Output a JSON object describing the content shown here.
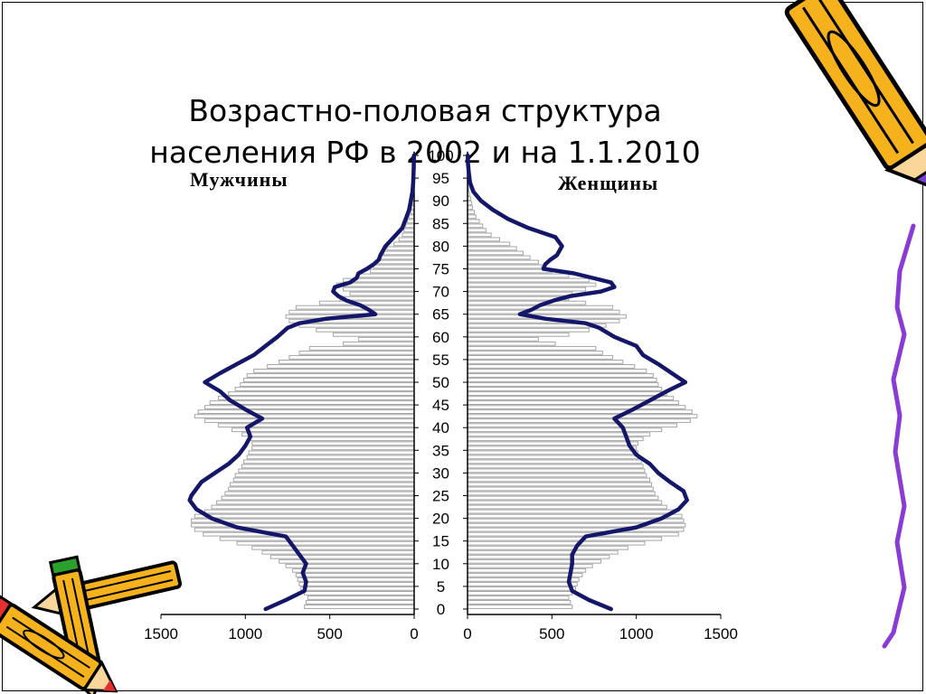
{
  "title_line1": "Возрастно-половая структура",
  "title_line2": "населения РФ в 2002 и на 1.1.2010",
  "chart_data": {
    "type": "population-pyramid",
    "title": "Возрастно-половая структура населения РФ в 2002 и на 1.1.2010",
    "left_label": "Мужчины",
    "right_label": "Женщины",
    "age_ticks": [
      0,
      5,
      10,
      15,
      20,
      25,
      30,
      35,
      40,
      45,
      50,
      55,
      60,
      65,
      70,
      75,
      80,
      85,
      90,
      95,
      100
    ],
    "x_ticks_left": [
      "1500",
      "1000",
      "500",
      "0"
    ],
    "x_ticks_right": [
      "0",
      "500",
      "1000",
      "1500"
    ],
    "xlim": [
      0,
      1500
    ],
    "ylim": [
      0,
      100
    ],
    "colors": {
      "bars_2002": "#ffffff",
      "bar_stroke": "#a6a6a6",
      "line_2010": "#14166a",
      "axis": "#000000"
    },
    "series": [
      {
        "name": "2002",
        "style": "bars",
        "ages": [
          0,
          1,
          2,
          3,
          4,
          5,
          6,
          7,
          8,
          9,
          10,
          11,
          12,
          13,
          14,
          15,
          16,
          17,
          18,
          19,
          20,
          21,
          22,
          23,
          24,
          25,
          26,
          27,
          28,
          29,
          30,
          31,
          32,
          33,
          34,
          35,
          36,
          37,
          38,
          39,
          40,
          41,
          42,
          43,
          44,
          45,
          46,
          47,
          48,
          49,
          50,
          51,
          52,
          53,
          54,
          55,
          56,
          57,
          58,
          59,
          60,
          61,
          62,
          63,
          64,
          65,
          66,
          67,
          68,
          69,
          70,
          71,
          72,
          73,
          74,
          75,
          76,
          77,
          78,
          79,
          80,
          81,
          82,
          83,
          84,
          85,
          86,
          87,
          88,
          89,
          90,
          91,
          92,
          93,
          94,
          95,
          96,
          97,
          98,
          99,
          100
        ],
        "male": [
          650,
          640,
          630,
          650,
          670,
          680,
          690,
          700,
          720,
          760,
          800,
          850,
          900,
          960,
          1050,
          1150,
          1250,
          1300,
          1320,
          1320,
          1300,
          1240,
          1200,
          1170,
          1140,
          1120,
          1100,
          1090,
          1070,
          1060,
          1040,
          1020,
          1010,
          990,
          980,
          960,
          960,
          980,
          1020,
          1080,
          1160,
          1240,
          1300,
          1280,
          1240,
          1210,
          1160,
          1100,
          1060,
          1030,
          1010,
          990,
          950,
          870,
          800,
          740,
          680,
          620,
          420,
          330,
          480,
          580,
          680,
          740,
          760,
          740,
          700,
          560,
          440,
          380,
          420,
          460,
          420,
          330,
          260,
          240,
          230,
          200,
          180,
          160,
          120,
          90,
          70,
          60,
          50,
          40,
          30,
          20,
          15,
          10,
          8,
          6,
          5,
          4,
          3,
          2,
          2,
          1,
          1,
          1,
          1
        ],
        "female": [
          620,
          610,
          600,
          620,
          640,
          650,
          660,
          680,
          700,
          740,
          790,
          840,
          890,
          950,
          1050,
          1150,
          1250,
          1280,
          1290,
          1280,
          1270,
          1220,
          1180,
          1150,
          1130,
          1110,
          1100,
          1090,
          1080,
          1060,
          1050,
          1040,
          1030,
          1020,
          1010,
          1000,
          1010,
          1040,
          1080,
          1150,
          1240,
          1320,
          1360,
          1330,
          1290,
          1250,
          1220,
          1180,
          1150,
          1130,
          1120,
          1100,
          1060,
          990,
          920,
          860,
          800,
          760,
          520,
          420,
          600,
          720,
          820,
          900,
          940,
          900,
          860,
          700,
          600,
          620,
          700,
          760,
          720,
          600,
          500,
          440,
          420,
          370,
          330,
          290,
          250,
          190,
          140,
          110,
          90,
          70,
          50,
          40,
          30,
          25,
          18,
          12,
          8,
          6,
          4,
          3,
          2,
          2,
          1,
          1,
          1
        ]
      },
      {
        "name": "1.1.2010",
        "style": "line",
        "ages": [
          0,
          2,
          4,
          6,
          8,
          10,
          12,
          14,
          16,
          18,
          20,
          22,
          24,
          25,
          26,
          28,
          30,
          32,
          34,
          36,
          38,
          40,
          42,
          44,
          46,
          48,
          50,
          52,
          54,
          56,
          58,
          60,
          62,
          63,
          64,
          65,
          66,
          67,
          68,
          69,
          70,
          71,
          72,
          73,
          74,
          75,
          76,
          77,
          78,
          80,
          82,
          84,
          86,
          88,
          90,
          92,
          94,
          96,
          98,
          100
        ],
        "male": [
          880,
          760,
          650,
          640,
          660,
          640,
          680,
          720,
          760,
          1050,
          1200,
          1290,
          1330,
          1320,
          1300,
          1260,
          1180,
          1100,
          1040,
          1000,
          970,
          990,
          900,
          1000,
          1090,
          1150,
          1240,
          1150,
          1050,
          950,
          880,
          810,
          750,
          680,
          520,
          230,
          270,
          320,
          400,
          450,
          480,
          470,
          380,
          340,
          330,
          280,
          240,
          210,
          200,
          170,
          120,
          70,
          50,
          30,
          20,
          10,
          6,
          4,
          2,
          1
        ],
        "female": [
          850,
          720,
          620,
          600,
          610,
          620,
          620,
          650,
          700,
          1000,
          1150,
          1250,
          1300,
          1290,
          1280,
          1200,
          1130,
          1080,
          1000,
          960,
          940,
          920,
          870,
          980,
          1080,
          1180,
          1290,
          1210,
          1130,
          1040,
          1000,
          870,
          780,
          700,
          460,
          310,
          380,
          430,
          510,
          610,
          790,
          870,
          850,
          740,
          630,
          450,
          460,
          490,
          530,
          560,
          520,
          360,
          240,
          150,
          80,
          35,
          15,
          8,
          3,
          1
        ]
      }
    ]
  }
}
